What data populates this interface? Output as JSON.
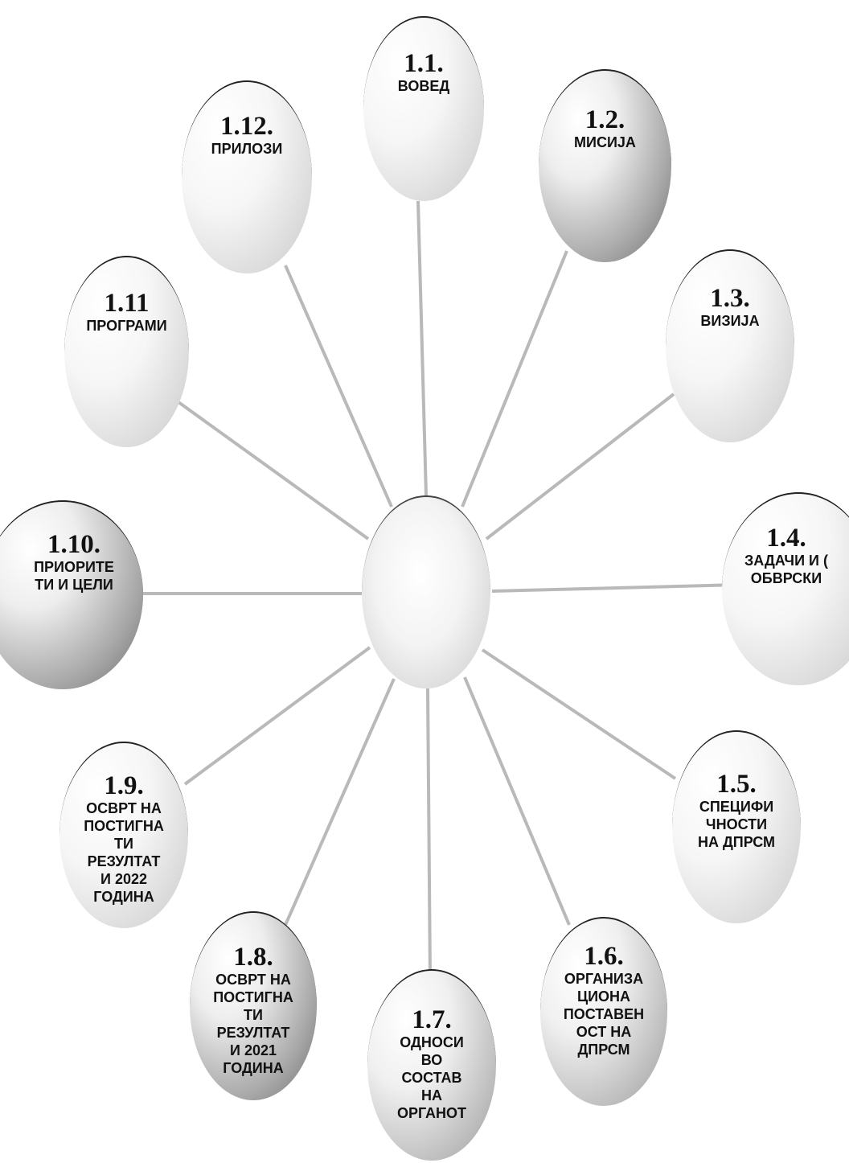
{
  "nodes": [
    {
      "id": "1-1",
      "number": "1.1.",
      "label": "ВОВЕД"
    },
    {
      "id": "1-2",
      "number": "1.2.",
      "label": "МИСИЈА"
    },
    {
      "id": "1-3",
      "number": "1.3.",
      "label": "ВИЗИЈА"
    },
    {
      "id": "1-4",
      "number": "1.4.",
      "label": "ЗАДАЧИ И (\nОБВРСКИ"
    },
    {
      "id": "1-5",
      "number": "1.5.",
      "label": "СПЕЦИФИ\nЧНОСТИ\nНА ДПРСМ"
    },
    {
      "id": "1-6",
      "number": "1.6.",
      "label": "ОРГАНИЗА\nЦИОНА\nПОСТАВЕН\nОСТ НА\nДПРСМ"
    },
    {
      "id": "1-7",
      "number": "1.7.",
      "label": "ОДНОСИ\nВО\nСОСТАВ\nНА\nОРГАНОТ"
    },
    {
      "id": "1-8",
      "number": "1.8.",
      "label": "ОСВРТ НА\nПОСТИГНА\nТИ\nРЕЗУЛТАТ\nИ 2021\nГОДИНА"
    },
    {
      "id": "1-9",
      "number": "1.9.",
      "label": "ОСВРТ НА\nПОСТИГНА\nТИ\nРЕЗУЛТАТ\nИ 2022\nГОДИНА"
    },
    {
      "id": "1-10",
      "number": "1.10.",
      "label": "ПРИОРИТЕ\nТИ И ЦЕЛИ"
    },
    {
      "id": "1-11",
      "number": "1.11",
      "label": "ПРОГРАМИ"
    },
    {
      "id": "1-12",
      "number": "1.12.",
      "label": "ПРИЛОЗИ"
    }
  ]
}
